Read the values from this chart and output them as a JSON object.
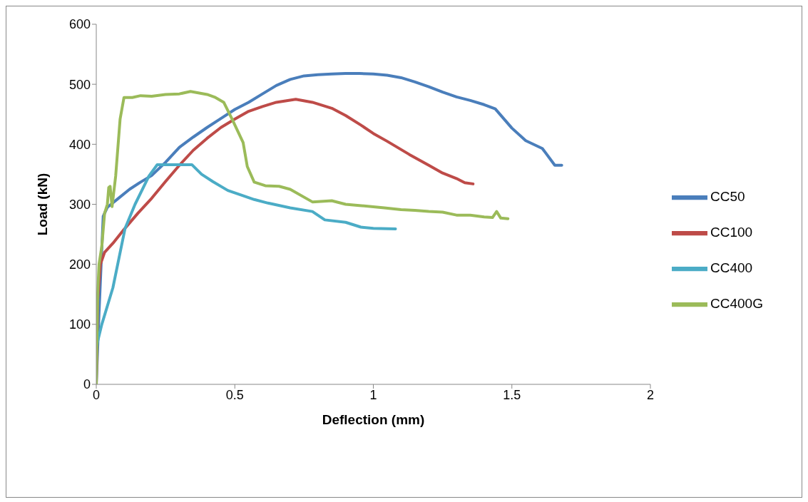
{
  "chart_data": {
    "type": "line",
    "xlabel": "Deflection (mm)",
    "ylabel": "Load (kN)",
    "xlim": [
      0,
      2
    ],
    "xticks": [
      0,
      0.5,
      1,
      1.5,
      2
    ],
    "ylim": [
      0,
      600
    ],
    "yticks": [
      0,
      100,
      200,
      300,
      400,
      500,
      600
    ],
    "grid": false,
    "legend": "right",
    "marker": "none",
    "line_style": "solid",
    "series": [
      {
        "name": "CC50",
        "color": "#4a7ebb",
        "x": [
          0,
          0.01,
          0.025,
          0.04,
          0.08,
          0.12,
          0.16,
          0.2,
          0.25,
          0.3,
          0.35,
          0.4,
          0.45,
          0.5,
          0.55,
          0.6,
          0.65,
          0.7,
          0.75,
          0.8,
          0.85,
          0.9,
          0.95,
          1.0,
          1.05,
          1.1,
          1.15,
          1.2,
          1.25,
          1.3,
          1.35,
          1.4,
          1.44,
          1.5,
          1.55,
          1.61,
          1.655,
          1.68
        ],
        "values": [
          0,
          120,
          280,
          295,
          310,
          325,
          337,
          348,
          370,
          395,
          412,
          428,
          443,
          458,
          470,
          484,
          498,
          508,
          514,
          516,
          517,
          518,
          518,
          517,
          515,
          511,
          504,
          496,
          487,
          479,
          473,
          466,
          459,
          427,
          406,
          393,
          365,
          365
        ]
      },
      {
        "name": "CC100",
        "color": "#be4b48",
        "x": [
          0,
          0.005,
          0.015,
          0.03,
          0.06,
          0.1,
          0.15,
          0.2,
          0.25,
          0.3,
          0.35,
          0.4,
          0.45,
          0.5,
          0.55,
          0.6,
          0.65,
          0.72,
          0.78,
          0.85,
          0.9,
          0.955,
          1.0,
          1.05,
          1.13,
          1.2,
          1.25,
          1.3,
          1.33,
          1.36
        ],
        "values": [
          0,
          140,
          200,
          220,
          235,
          258,
          285,
          310,
          338,
          365,
          390,
          410,
          428,
          442,
          455,
          463,
          470,
          475,
          470,
          460,
          448,
          432,
          418,
          405,
          383,
          365,
          352,
          343,
          336,
          334
        ]
      },
      {
        "name": "CC400",
        "color": "#4bacc6",
        "x": [
          0,
          0.02,
          0.06,
          0.104,
          0.14,
          0.19,
          0.22,
          0.345,
          0.38,
          0.42,
          0.475,
          0.52,
          0.57,
          0.62,
          0.7,
          0.78,
          0.825,
          0.9,
          0.955,
          1.0,
          1.08
        ],
        "values": [
          62,
          100,
          161,
          260,
          300,
          347,
          366,
          366,
          350,
          338,
          323,
          316,
          308,
          302,
          294,
          288,
          274,
          270,
          262,
          260,
          259
        ]
      },
      {
        "name": "CC400G",
        "color": "#9bbb59",
        "x": [
          0,
          0.005,
          0.01,
          0.02,
          0.03,
          0.04,
          0.045,
          0.05,
          0.057,
          0.07,
          0.086,
          0.1,
          0.13,
          0.16,
          0.2,
          0.25,
          0.3,
          0.34,
          0.4,
          0.43,
          0.46,
          0.49,
          0.53,
          0.545,
          0.57,
          0.61,
          0.66,
          0.7,
          0.78,
          0.85,
          0.9,
          0.95,
          1.04,
          1.1,
          1.15,
          1.2,
          1.25,
          1.3,
          1.35,
          1.4,
          1.43,
          1.445,
          1.46,
          1.486
        ],
        "values": [
          0,
          150,
          200,
          230,
          285,
          300,
          328,
          330,
          296,
          347,
          442,
          478,
          478,
          481,
          480,
          483,
          484,
          488,
          483,
          478,
          470,
          442,
          403,
          363,
          337,
          331,
          330,
          325,
          304,
          306,
          300,
          298,
          294,
          291,
          290,
          288,
          287,
          282,
          282,
          279,
          278,
          288,
          277,
          276
        ]
      }
    ]
  }
}
